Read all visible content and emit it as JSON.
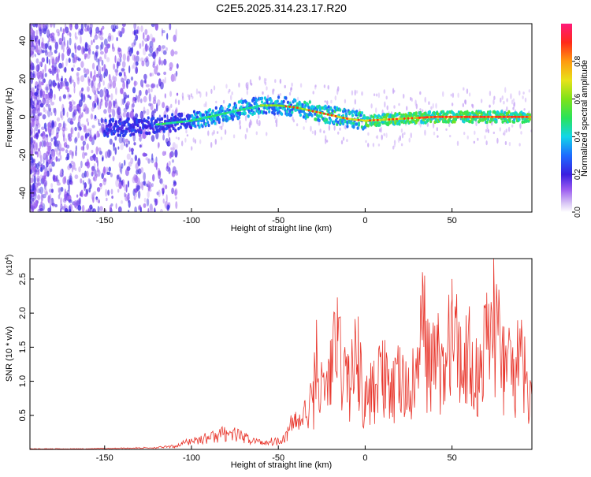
{
  "figure": {
    "title": "C2E5.2025.314.23.17.R20"
  },
  "chart_data": [
    {
      "type": "heatmap",
      "xlabel": "Height of straight line (km)",
      "ylabel": "Frequency (Hz)",
      "xlim": [
        -193,
        96
      ],
      "ylim": [
        -50,
        49
      ],
      "xticks": [
        -150,
        -100,
        -50,
        0,
        50
      ],
      "yticks": [
        -40,
        -20,
        0,
        20,
        40
      ],
      "ridge": {
        "x": [
          -150,
          -130,
          -110,
          -100,
          -90,
          -80,
          -70,
          -60,
          -50,
          -40,
          -30,
          -20,
          -10,
          0,
          20,
          40,
          60,
          80,
          95
        ],
        "y": [
          -6,
          -5,
          -3,
          -2,
          0,
          2,
          4,
          6,
          6,
          5,
          3,
          1,
          -1,
          -2,
          -1,
          0,
          0,
          0,
          0
        ]
      },
      "colorbar": {
        "label": "Normalized spectral amplitude",
        "range": [
          0,
          1
        ],
        "ticks": [
          0.0,
          0.2,
          0.4,
          0.6,
          0.8
        ]
      },
      "grid": false
    },
    {
      "type": "line",
      "xlabel": "Height of straight line (km)",
      "ylabel": "SNR (10 * v/v)",
      "yscale_label": "(x10",
      "yscale_exp": "4",
      "yscale_suffix": ")",
      "xlim": [
        -193,
        96
      ],
      "ylim": [
        0,
        2.8
      ],
      "xticks": [
        -150,
        -100,
        -50,
        0,
        50
      ],
      "yticks": [
        0.5,
        1.0,
        1.5,
        2.0,
        2.5
      ],
      "ytick_labels": [
        "0.5",
        "1.0",
        "1.5",
        "2.0",
        "2.5"
      ],
      "color": "#e8352b",
      "series": [
        {
          "x": [
            -193,
            -180,
            -160,
            -140,
            -120,
            -110,
            -100,
            -90,
            -80,
            -75,
            -70,
            -60,
            -50,
            -45,
            -40,
            -35,
            -30,
            -28,
            -25,
            -20,
            -16,
            -10,
            -4,
            0,
            5,
            10,
            15,
            20,
            25,
            30,
            33,
            38,
            42,
            45,
            50,
            55,
            60,
            65,
            70,
            74,
            80,
            85,
            90,
            95
          ],
          "y": [
            0.01,
            0.01,
            0.01,
            0.02,
            0.03,
            0.05,
            0.15,
            0.2,
            0.28,
            0.25,
            0.2,
            0.12,
            0.15,
            0.25,
            0.55,
            0.7,
            1.0,
            1.9,
            1.2,
            1.6,
            2.23,
            1.4,
            1.95,
            1.0,
            1.3,
            1.6,
            1.1,
            1.5,
            1.2,
            1.5,
            2.6,
            1.7,
            2.0,
            1.5,
            2.5,
            1.8,
            2.1,
            1.5,
            2.3,
            2.8,
            1.8,
            1.5,
            1.9,
            1.0
          ]
        }
      ]
    }
  ]
}
